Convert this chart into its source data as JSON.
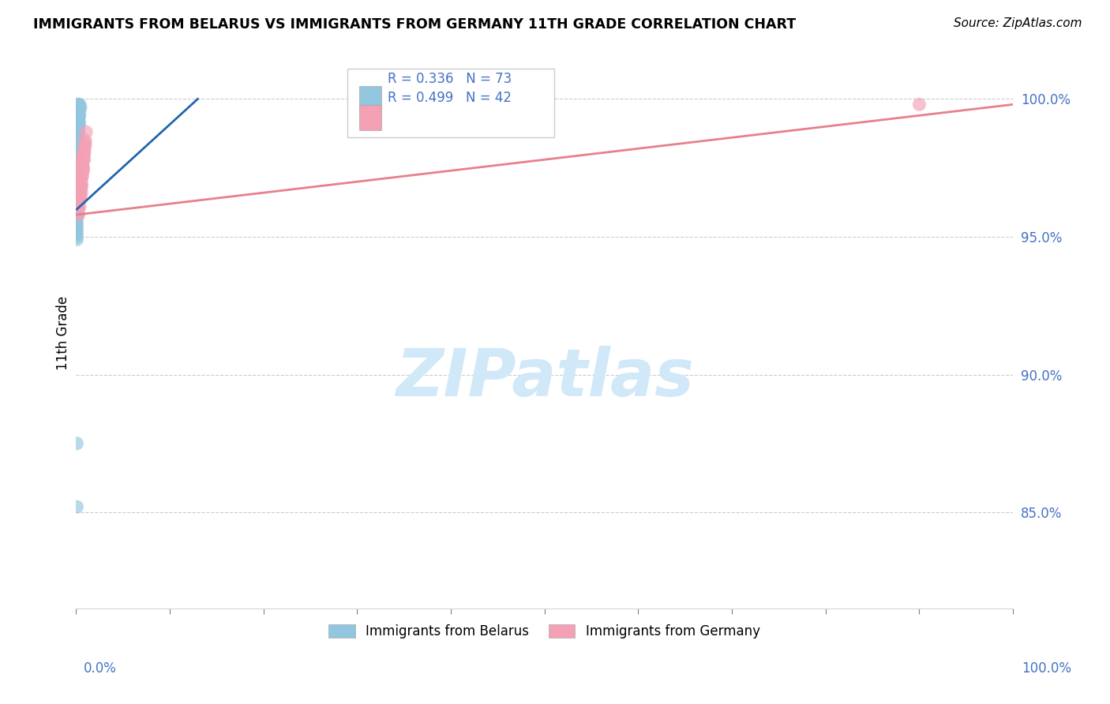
{
  "title": "IMMIGRANTS FROM BELARUS VS IMMIGRANTS FROM GERMANY 11TH GRADE CORRELATION CHART",
  "source": "Source: ZipAtlas.com",
  "ylabel": "11th Grade",
  "ytick_values": [
    0.85,
    0.9,
    0.95,
    1.0
  ],
  "ytick_labels": [
    "85.0%",
    "90.0%",
    "95.0%",
    "100.0%"
  ],
  "xlim": [
    0.0,
    1.0
  ],
  "ylim": [
    0.815,
    1.015
  ],
  "r_belarus": 0.336,
  "n_belarus": 73,
  "r_germany": 0.499,
  "n_germany": 42,
  "color_belarus": "#92c5de",
  "color_germany": "#f4a0b5",
  "trendline_color_belarus": "#2166ac",
  "trendline_color_germany": "#e8808a",
  "legend_label_belarus": "Immigrants from Belarus",
  "legend_label_germany": "Immigrants from Germany",
  "background_color": "#ffffff",
  "tick_color": "#4472c4",
  "grid_color": "#c0c0c0",
  "watermark_color": "#d0e8f8",
  "watermark_text": "ZIPatlas",
  "bel_scatter_x": [
    0.002,
    0.003,
    0.004,
    0.002,
    0.003,
    0.001,
    0.003,
    0.002,
    0.004,
    0.005,
    0.003,
    0.002,
    0.003,
    0.004,
    0.002,
    0.003,
    0.001,
    0.002,
    0.003,
    0.002,
    0.004,
    0.003,
    0.002,
    0.003,
    0.001,
    0.002,
    0.003,
    0.002,
    0.001,
    0.002,
    0.003,
    0.002,
    0.001,
    0.002,
    0.003,
    0.002,
    0.001,
    0.002,
    0.001,
    0.002,
    0.001,
    0.002,
    0.003,
    0.001,
    0.002,
    0.003,
    0.002,
    0.001,
    0.003,
    0.002,
    0.001,
    0.002,
    0.001,
    0.002,
    0.001,
    0.002,
    0.001,
    0.002,
    0.001,
    0.002,
    0.001,
    0.002,
    0.001,
    0.001,
    0.001,
    0.001,
    0.001,
    0.001,
    0.001,
    0.001,
    0.001,
    0.001,
    0.001
  ],
  "bel_scatter_y": [
    0.998,
    0.998,
    0.998,
    0.997,
    0.997,
    0.997,
    0.996,
    0.996,
    0.996,
    0.997,
    0.995,
    0.995,
    0.994,
    0.994,
    0.994,
    0.993,
    0.993,
    0.992,
    0.992,
    0.991,
    0.991,
    0.99,
    0.99,
    0.989,
    0.989,
    0.988,
    0.988,
    0.987,
    0.987,
    0.986,
    0.986,
    0.985,
    0.985,
    0.984,
    0.984,
    0.983,
    0.983,
    0.982,
    0.981,
    0.98,
    0.979,
    0.978,
    0.977,
    0.976,
    0.975,
    0.974,
    0.973,
    0.972,
    0.971,
    0.97,
    0.969,
    0.968,
    0.967,
    0.966,
    0.965,
    0.964,
    0.963,
    0.962,
    0.961,
    0.96,
    0.959,
    0.958,
    0.957,
    0.956,
    0.955,
    0.954,
    0.953,
    0.952,
    0.951,
    0.95,
    0.949,
    0.875,
    0.852
  ],
  "ger_scatter_x": [
    0.005,
    0.007,
    0.004,
    0.006,
    0.008,
    0.01,
    0.006,
    0.008,
    0.005,
    0.009,
    0.007,
    0.004,
    0.006,
    0.008,
    0.011,
    0.005,
    0.007,
    0.009,
    0.004,
    0.01,
    0.008,
    0.006,
    0.004,
    0.005,
    0.007,
    0.009,
    0.003,
    0.005,
    0.006,
    0.008,
    0.01,
    0.004,
    0.003,
    0.006,
    0.005,
    0.008,
    0.006,
    0.004,
    0.009,
    0.007,
    0.006,
    0.9
  ],
  "ger_scatter_y": [
    0.975,
    0.978,
    0.972,
    0.976,
    0.98,
    0.984,
    0.973,
    0.979,
    0.971,
    0.982,
    0.976,
    0.968,
    0.973,
    0.979,
    0.988,
    0.969,
    0.975,
    0.981,
    0.966,
    0.985,
    0.978,
    0.971,
    0.964,
    0.967,
    0.974,
    0.98,
    0.96,
    0.965,
    0.969,
    0.975,
    0.983,
    0.963,
    0.958,
    0.969,
    0.964,
    0.974,
    0.968,
    0.961,
    0.978,
    0.972,
    0.966,
    0.998
  ],
  "bel_trend_x": [
    0.001,
    0.13
  ],
  "bel_trend_y": [
    0.96,
    1.0
  ],
  "ger_trend_x": [
    0.001,
    1.0
  ],
  "ger_trend_y": [
    0.958,
    0.998
  ]
}
